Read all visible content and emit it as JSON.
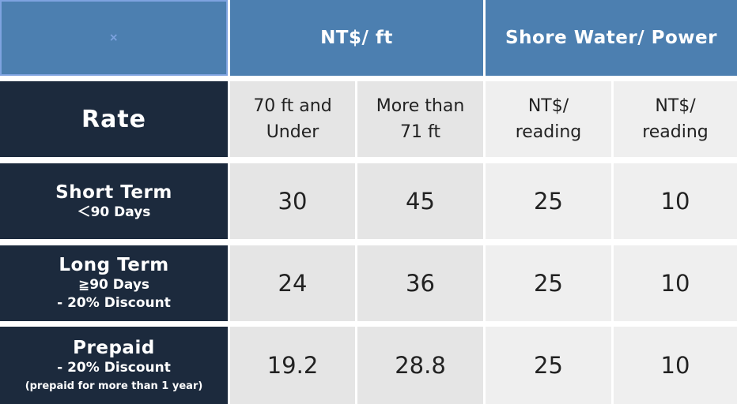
{
  "header": {
    "corner_mark": "×",
    "nt_per_ft": "NT$/ ft",
    "shore": "Shore Water/ Power"
  },
  "subheader": {
    "rate_label": "Rate",
    "col1": [
      "70 ft and",
      "Under"
    ],
    "col2": [
      "More than",
      "71 ft"
    ],
    "col3": [
      "NT$/",
      "reading"
    ],
    "col4": [
      "NT$/",
      "reading"
    ]
  },
  "rows": [
    {
      "title": "Short Term",
      "sub": [
        "＜90 Days"
      ],
      "note": "",
      "values": [
        "30",
        "45",
        "25",
        "10"
      ]
    },
    {
      "title": "Long Term",
      "sub": [
        "≧90 Days",
        "- 20% Discount"
      ],
      "note": "",
      "values": [
        "24",
        "36",
        "25",
        "10"
      ]
    },
    {
      "title": "Prepaid",
      "sub": [
        "- 20% Discount"
      ],
      "note": "(prepaid for more than 1 year)",
      "values": [
        "19.2",
        "28.8",
        "25",
        "10"
      ]
    }
  ],
  "colors": {
    "header_blue": "#4c7fb0",
    "row_label_navy": "#1c2a3d",
    "cell_gray_dark": "#e5e5e5",
    "cell_gray_light": "#efefef"
  }
}
